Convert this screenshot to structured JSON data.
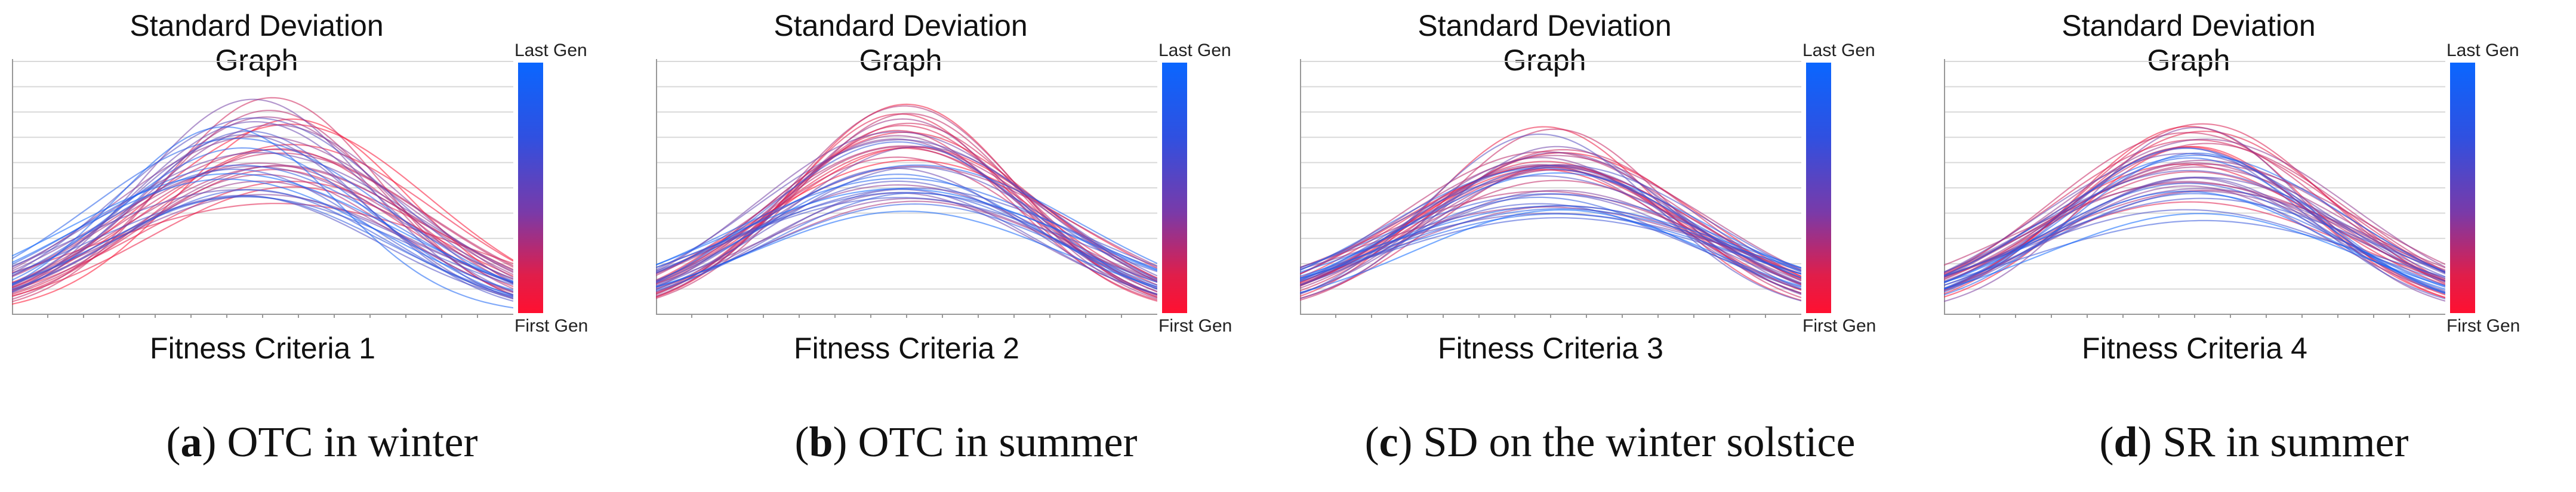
{
  "legend": {
    "top_label": "Last Gen",
    "bottom_label": "First Gen",
    "top_color": "#0a66ff",
    "bottom_color": "#ff1030"
  },
  "chart_data": [
    {
      "type": "line",
      "title": "Standard Deviation Graph",
      "xlabel": "Fitness Criteria 1",
      "caption_letter": "a",
      "caption_text": ") OTC in winter",
      "grid": true,
      "last_gen_peak_offset": -0.12,
      "first_gen_peak_offset": 0.12,
      "last_gen_max_height": 0.78,
      "first_gen_max_height": 1.0
    },
    {
      "type": "line",
      "title": "Standard Deviation Graph",
      "xlabel": "Fitness Criteria 2",
      "caption_letter": "b",
      "caption_text": ") OTC in summer",
      "grid": true,
      "last_gen_peak_offset": 0.0,
      "first_gen_peak_offset": 0.0,
      "last_gen_max_height": 0.72,
      "first_gen_max_height": 1.0
    },
    {
      "type": "line",
      "title": "Standard Deviation Graph",
      "xlabel": "Fitness Criteria 3",
      "caption_letter": "c",
      "caption_text": ") SD on the winter solstice",
      "grid": true,
      "last_gen_peak_offset": 0.0,
      "first_gen_peak_offset": 0.0,
      "last_gen_max_height": 0.62,
      "first_gen_max_height": 1.0
    },
    {
      "type": "line",
      "title": "Standard Deviation Graph",
      "xlabel": "Fitness Criteria 4",
      "caption_letter": "d",
      "caption_text": ") SR in summer",
      "grid": true,
      "last_gen_peak_offset": 0.0,
      "first_gen_peak_offset": 0.0,
      "last_gen_max_height": 0.62,
      "first_gen_max_height": 1.0
    }
  ]
}
